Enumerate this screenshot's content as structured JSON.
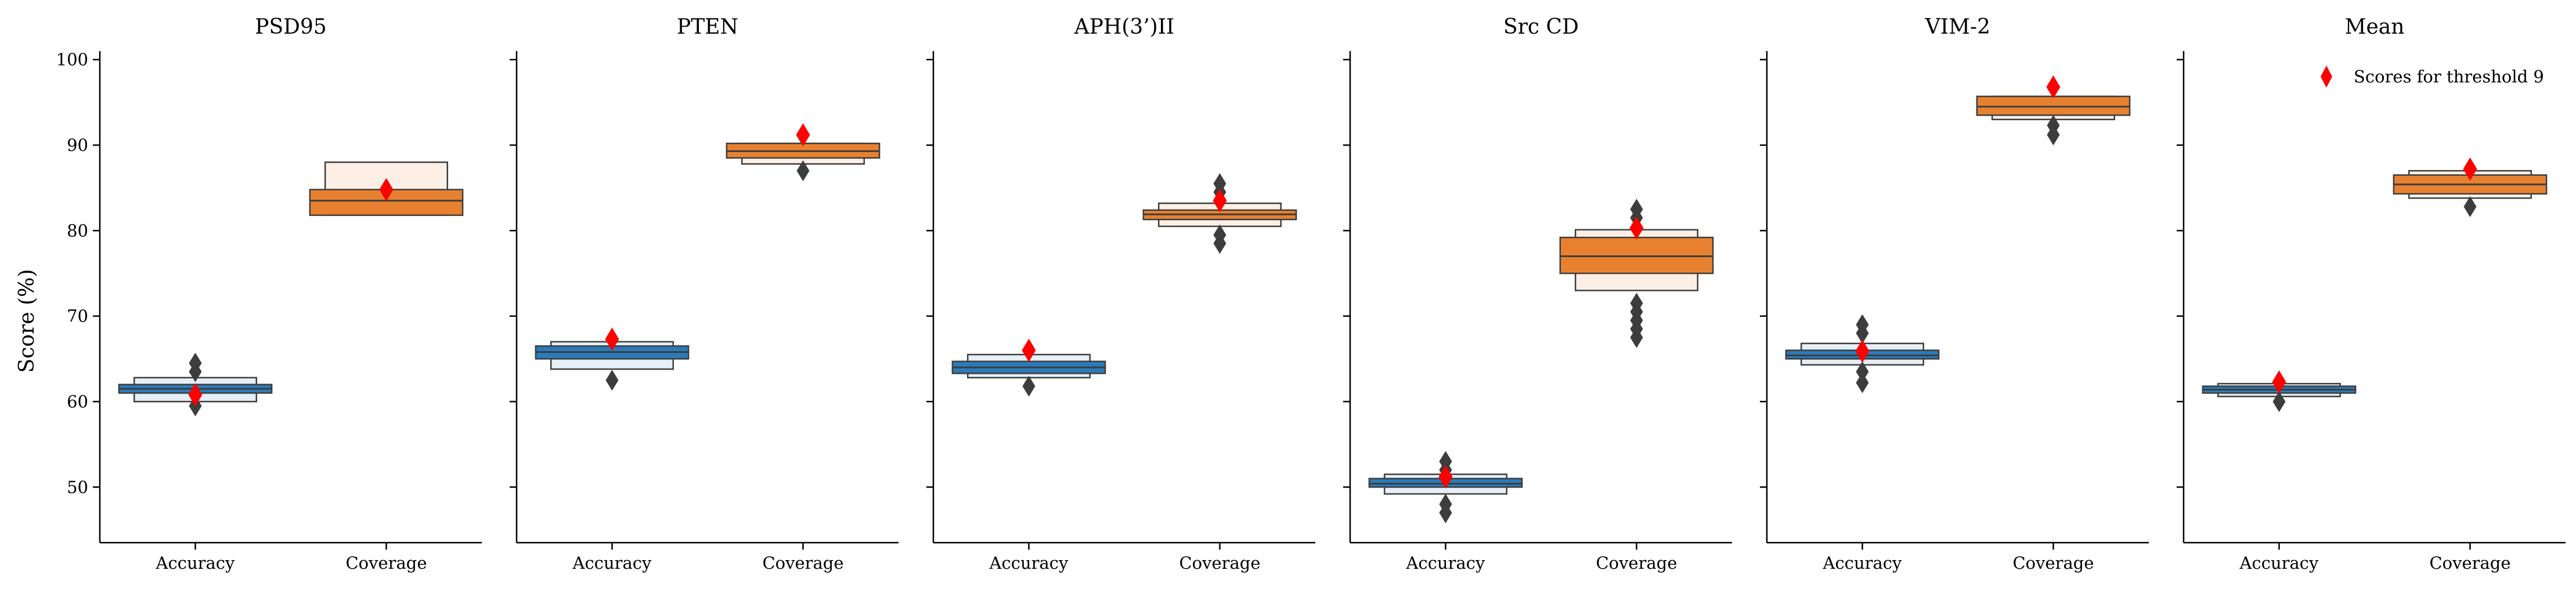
{
  "figure": {
    "ylabel": "Score (%)",
    "legend": {
      "label": "Scores for threshold 9",
      "marker_color": "#ff0000",
      "placement": "top-right"
    }
  },
  "chart_data": {
    "type": "boxen",
    "ylabel": "Score (%)",
    "ylim": [
      43.5,
      101
    ],
    "yticks": [
      50,
      60,
      70,
      80,
      90,
      100
    ],
    "grid": false,
    "categories": [
      "Accuracy",
      "Coverage"
    ],
    "colors": {
      "Accuracy": "#2b7bba",
      "Coverage": "#e8812f",
      "outlier": "#3d3d3d",
      "threshold_marker": "#ff0000"
    },
    "panels": [
      {
        "title": "PSD95",
        "boxes": [
          {
            "category": "Accuracy",
            "median": 61.5,
            "boxes": [
              [
                61,
                62
              ],
              [
                60,
                62.8
              ]
            ],
            "outliers": [
              59.5,
              63.5,
              64.5
            ],
            "threshold_score": 60.8
          },
          {
            "category": "Coverage",
            "median": 83.5,
            "boxes": [
              [
                81.8,
                84.8
              ],
              [
                81.8,
                88
              ]
            ],
            "outliers": [],
            "threshold_score": 84.8
          }
        ]
      },
      {
        "title": "PTEN",
        "boxes": [
          {
            "category": "Accuracy",
            "median": 65.8,
            "boxes": [
              [
                65,
                66.5
              ],
              [
                63.8,
                67
              ]
            ],
            "outliers": [
              62.5
            ],
            "threshold_score": 67.3
          },
          {
            "category": "Coverage",
            "median": 89.3,
            "boxes": [
              [
                88.5,
                90.2
              ],
              [
                87.8,
                90.2
              ]
            ],
            "outliers": [
              87
            ],
            "threshold_score": 91.2
          }
        ]
      },
      {
        "title": "APH(3’)II",
        "boxes": [
          {
            "category": "Accuracy",
            "median": 64,
            "boxes": [
              [
                63.3,
                64.7
              ],
              [
                62.8,
                65.5
              ]
            ],
            "outliers": [
              61.8
            ],
            "threshold_score": 66
          },
          {
            "category": "Coverage",
            "median": 81.9,
            "boxes": [
              [
                81.3,
                82.4
              ],
              [
                80.5,
                83.2
              ]
            ],
            "outliers": [
              78.5,
              79.5,
              84.5,
              85.5
            ],
            "threshold_score": 83.5
          }
        ]
      },
      {
        "title": "Src CD",
        "boxes": [
          {
            "category": "Accuracy",
            "median": 50.4,
            "boxes": [
              [
                50,
                51
              ],
              [
                49.2,
                51.5
              ]
            ],
            "outliers": [
              47,
              48,
              52,
              53
            ],
            "threshold_score": 51.2
          },
          {
            "category": "Coverage",
            "median": 77,
            "boxes": [
              [
                75,
                79.2
              ],
              [
                73,
                80.1
              ]
            ],
            "outliers": [
              67.5,
              68.5,
              69.5,
              70.5,
              71.5,
              81.5,
              82.5
            ],
            "threshold_score": 80.3
          }
        ]
      },
      {
        "title": "VIM-2",
        "boxes": [
          {
            "category": "Accuracy",
            "median": 65.4,
            "boxes": [
              [
                65,
                66
              ],
              [
                64.3,
                66.8
              ]
            ],
            "outliers": [
              62.2,
              63.5,
              68,
              69
            ],
            "threshold_score": 65.9
          },
          {
            "category": "Coverage",
            "median": 94.5,
            "boxes": [
              [
                93.5,
                95.7
              ],
              [
                93,
                95.7
              ]
            ],
            "outliers": [
              91.2,
              92.3
            ],
            "threshold_score": 96.8
          }
        ]
      },
      {
        "title": "Mean",
        "boxes": [
          {
            "category": "Accuracy",
            "median": 61.4,
            "boxes": [
              [
                61,
                61.8
              ],
              [
                60.6,
                62.1
              ]
            ],
            "outliers": [
              60
            ],
            "threshold_score": 62.3
          },
          {
            "category": "Coverage",
            "median": 85.4,
            "boxes": [
              [
                84.3,
                86.5
              ],
              [
                83.8,
                87
              ]
            ],
            "outliers": [
              82.8
            ],
            "threshold_score": 87.2
          }
        ]
      }
    ]
  }
}
